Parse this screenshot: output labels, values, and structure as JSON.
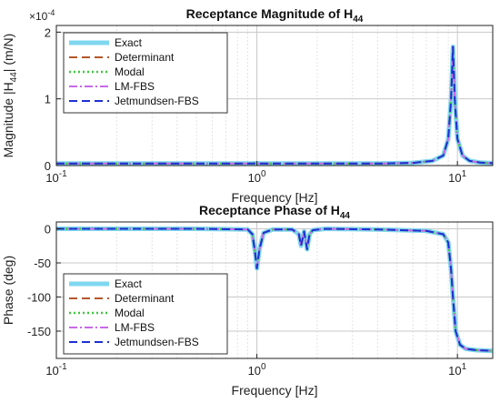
{
  "chart_data": [
    {
      "type": "line",
      "title": "Receptance Magnitude of H",
      "title_subscript": "44",
      "xlabel": "Frequency [Hz]",
      "ylabel": "Magnitude  |H",
      "ylabel_subscript": "44",
      "ylabel_suffix": "|  (m/N)",
      "xscale": "log",
      "xlim": [
        0.1,
        15
      ],
      "ylim": [
        0,
        2.1
      ],
      "yscale_exponent_label": "×10",
      "yscale_exponent": "-4",
      "grid": true,
      "legend_position": "top-left",
      "xticks": [
        {
          "v": 0.1,
          "b": "10",
          "e": "-1"
        },
        {
          "v": 1,
          "b": "10",
          "e": "0"
        },
        {
          "v": 10,
          "b": "10",
          "e": "1"
        }
      ],
      "yticks": [
        {
          "v": 0,
          "label": "0"
        },
        {
          "v": 1,
          "label": "1"
        },
        {
          "v": 2,
          "label": "2"
        }
      ],
      "series": [
        {
          "name": "Exact",
          "color": "#7fd7ef",
          "style": "solid"
        },
        {
          "name": "Determinant",
          "color": "#b5562b",
          "style": "dashed"
        },
        {
          "name": "Modal",
          "color": "#3fc83f",
          "style": "dotted"
        },
        {
          "name": "LM-FBS",
          "color": "#c868e8",
          "style": "dashdot"
        },
        {
          "name": "Jetmundsen-FBS",
          "color": "#1d2fd6",
          "style": "dashed"
        }
      ],
      "x": [
        0.1,
        0.3,
        0.7,
        0.95,
        1.0,
        1.05,
        1.5,
        2.5,
        4,
        6,
        7.5,
        8.5,
        9.0,
        9.3,
        9.5,
        9.7,
        10.0,
        10.6,
        11.5,
        13,
        15
      ],
      "y": [
        0.03,
        0.03,
        0.03,
        0.03,
        0.035,
        0.03,
        0.03,
        0.03,
        0.03,
        0.04,
        0.07,
        0.15,
        0.4,
        1.0,
        1.78,
        1.0,
        0.4,
        0.15,
        0.07,
        0.045,
        0.035
      ]
    },
    {
      "type": "line",
      "title": "Receptance Phase of H",
      "title_subscript": "44",
      "xlabel": "Frequency [Hz]",
      "ylabel": "Phase (deg)",
      "xscale": "log",
      "xlim": [
        0.1,
        15
      ],
      "ylim": [
        -190,
        10
      ],
      "grid": true,
      "legend_position": "bottom-left",
      "xticks": [
        {
          "v": 0.1,
          "b": "10",
          "e": "-1"
        },
        {
          "v": 1,
          "b": "10",
          "e": "0"
        },
        {
          "v": 10,
          "b": "10",
          "e": "1"
        }
      ],
      "yticks": [
        {
          "v": 0,
          "label": "0"
        },
        {
          "v": -50,
          "label": "-50"
        },
        {
          "v": -100,
          "label": "-100"
        },
        {
          "v": -150,
          "label": "-150"
        }
      ],
      "series": [
        {
          "name": "Exact",
          "color": "#7fd7ef",
          "style": "solid"
        },
        {
          "name": "Determinant",
          "color": "#b5562b",
          "style": "dashed"
        },
        {
          "name": "Modal",
          "color": "#3fc83f",
          "style": "dotted"
        },
        {
          "name": "LM-FBS",
          "color": "#c868e8",
          "style": "dashdot"
        },
        {
          "name": "Jetmundsen-FBS",
          "color": "#1d2fd6",
          "style": "dashed"
        }
      ],
      "x": [
        0.1,
        0.5,
        0.9,
        0.95,
        0.98,
        1.0,
        1.03,
        1.08,
        1.2,
        1.5,
        1.62,
        1.66,
        1.72,
        1.78,
        1.83,
        1.9,
        2.2,
        4,
        7,
        8.5,
        9.0,
        9.3,
        9.5,
        9.8,
        10.3,
        11,
        12.5,
        15
      ],
      "y": [
        0,
        0,
        -1,
        -8,
        -35,
        -58,
        -30,
        -6,
        -1,
        -1,
        -8,
        -25,
        -4,
        -30,
        -8,
        -2,
        0,
        -1,
        -3,
        -8,
        -20,
        -60,
        -100,
        -150,
        -170,
        -176,
        -178,
        -179
      ]
    }
  ]
}
